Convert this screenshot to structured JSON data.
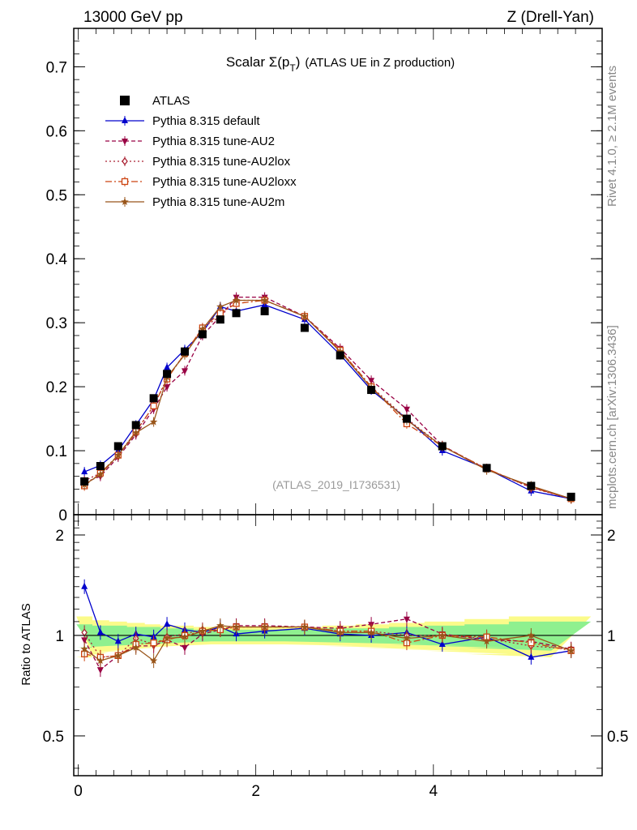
{
  "header": {
    "left": "13000 GeV pp",
    "right": "Z (Drell-Yan)"
  },
  "side_labels": {
    "top": "Rivet 4.1.0, ≥ 2.1M events",
    "bottom": "mcplots.cern.ch [arXiv:1306.3436]"
  },
  "colors": {
    "ATLAS": "#000000",
    "Pythia 8.315 default": "#0000cc",
    "Pythia 8.315 tune-AU2": "#990044",
    "Pythia 8.315 tune-AU2lox": "#aa2233",
    "Pythia 8.315 tune-AU2loxx": "#cc4411",
    "Pythia 8.315 tune-AU2m": "#99551a",
    "band_inner": "#8ff08f",
    "band_outer": "#fbfb8a"
  },
  "chart_data": [
    {
      "type": "line",
      "title_main": "Scalar Σ(p",
      "title_sub_t": "T",
      "title_close": ")",
      "title_rest": "(ATLAS UE in Z production)",
      "reference": "(ATLAS_2019_I1736531)",
      "xlim": [
        -0.05,
        5.9
      ],
      "ylim": [
        0,
        0.76
      ],
      "yticks": [
        "0",
        "0.1",
        "0.2",
        "0.3",
        "0.4",
        "0.5",
        "0.6",
        "0.7"
      ],
      "legend_position": "top-left",
      "x": [
        0.07,
        0.25,
        0.45,
        0.65,
        0.85,
        1.0,
        1.2,
        1.4,
        1.6,
        1.78,
        2.1,
        2.55,
        2.95,
        3.3,
        3.7,
        4.1,
        4.6,
        5.1,
        5.55
      ],
      "series": [
        {
          "name": "ATLAS",
          "marker": "square",
          "values": [
            0.052,
            0.076,
            0.107,
            0.14,
            0.182,
            0.22,
            0.255,
            0.282,
            0.305,
            0.315,
            0.318,
            0.292,
            0.249,
            0.195,
            0.15,
            0.107,
            0.073,
            0.045,
            0.028
          ]
        },
        {
          "name": "Pythia 8.315 default",
          "marker": "triangle-up",
          "dash": "",
          "values": [
            0.067,
            0.077,
            0.1,
            0.14,
            0.18,
            0.23,
            0.258,
            0.285,
            0.325,
            0.318,
            0.328,
            0.305,
            0.25,
            0.195,
            0.15,
            0.1,
            0.072,
            0.037,
            0.025
          ]
        },
        {
          "name": "Pythia 8.315 tune-AU2",
          "marker": "triangle-down",
          "dash": "5,3",
          "values": [
            0.05,
            0.06,
            0.09,
            0.125,
            0.165,
            0.2,
            0.225,
            0.28,
            0.31,
            0.34,
            0.34,
            0.31,
            0.26,
            0.21,
            0.165,
            0.108,
            0.071,
            0.043,
            0.025
          ]
        },
        {
          "name": "Pythia 8.315 tune-AU2lox",
          "marker": "diamond-open",
          "dash": "2,3",
          "values": [
            0.053,
            0.065,
            0.093,
            0.13,
            0.17,
            0.213,
            0.252,
            0.292,
            0.31,
            0.335,
            0.335,
            0.31,
            0.257,
            0.2,
            0.15,
            0.107,
            0.072,
            0.042,
            0.025
          ]
        },
        {
          "name": "Pythia 8.315 tune-AU2loxx",
          "marker": "square-open",
          "dash": "8,3,2,3",
          "values": [
            0.045,
            0.065,
            0.093,
            0.13,
            0.17,
            0.212,
            0.252,
            0.292,
            0.315,
            0.33,
            0.335,
            0.31,
            0.257,
            0.2,
            0.142,
            0.107,
            0.072,
            0.043,
            0.025
          ]
        },
        {
          "name": "Pythia 8.315 tune-AU2m",
          "marker": "star",
          "dash": "",
          "values": [
            0.047,
            0.063,
            0.093,
            0.128,
            0.145,
            0.215,
            0.25,
            0.29,
            0.325,
            0.335,
            0.335,
            0.31,
            0.255,
            0.198,
            0.148,
            0.107,
            0.07,
            0.045,
            0.025
          ]
        }
      ]
    },
    {
      "type": "line",
      "ylabel": "Ratio to ATLAS",
      "xlim": [
        -0.05,
        5.9
      ],
      "ylim": [
        0.38,
        2.3
      ],
      "ytick_values": [
        0.5,
        1,
        2
      ],
      "ytick_labels": [
        "0.5",
        "1",
        "2"
      ],
      "xticks": [
        "0",
        "2",
        "4"
      ],
      "band_inner_halfwidth": [
        0.08,
        0.07,
        0.07,
        0.06,
        0.06,
        0.05,
        0.05,
        0.04,
        0.04,
        0.04,
        0.04,
        0.04,
        0.05,
        0.05,
        0.06,
        0.07,
        0.08,
        0.1,
        0.1
      ],
      "band_outer_halfwidth": [
        0.14,
        0.11,
        0.1,
        0.09,
        0.08,
        0.07,
        0.07,
        0.06,
        0.06,
        0.06,
        0.06,
        0.06,
        0.07,
        0.08,
        0.09,
        0.1,
        0.12,
        0.14,
        0.14
      ],
      "series": [
        {
          "name": "Pythia 8.315 default",
          "values": [
            1.4,
            1.02,
            0.96,
            1.01,
            0.99,
            1.08,
            1.04,
            1.02,
            1.06,
            1.01,
            1.03,
            1.05,
            1.01,
            1.0,
            1.02,
            0.94,
            0.99,
            0.86,
            0.9
          ]
        },
        {
          "name": "Pythia 8.315 tune-AU2",
          "values": [
            0.97,
            0.79,
            0.87,
            0.93,
            0.93,
            0.97,
            0.92,
            1.01,
            1.04,
            1.07,
            1.07,
            1.06,
            1.05,
            1.08,
            1.12,
            1.01,
            0.97,
            0.96,
            0.91
          ]
        },
        {
          "name": "Pythia 8.315 tune-AU2lox",
          "values": [
            1.02,
            0.86,
            0.87,
            0.98,
            0.94,
            0.99,
            1.01,
            1.04,
            1.04,
            1.06,
            1.06,
            1.06,
            1.03,
            1.03,
            1.0,
            1.0,
            0.98,
            0.93,
            0.91
          ]
        },
        {
          "name": "Pythia 8.315 tune-AU2loxx",
          "values": [
            0.88,
            0.86,
            0.87,
            0.94,
            0.95,
            0.97,
            1.0,
            1.03,
            1.04,
            1.06,
            1.06,
            1.06,
            1.03,
            1.03,
            0.95,
            1.0,
            0.99,
            0.95,
            0.9
          ]
        },
        {
          "name": "Pythia 8.315 tune-AU2m",
          "values": [
            0.91,
            0.84,
            0.87,
            0.92,
            0.84,
            0.98,
            0.99,
            1.03,
            1.07,
            1.06,
            1.06,
            1.06,
            1.02,
            1.02,
            0.98,
            1.0,
            0.96,
            1.0,
            0.9
          ]
        }
      ]
    }
  ]
}
